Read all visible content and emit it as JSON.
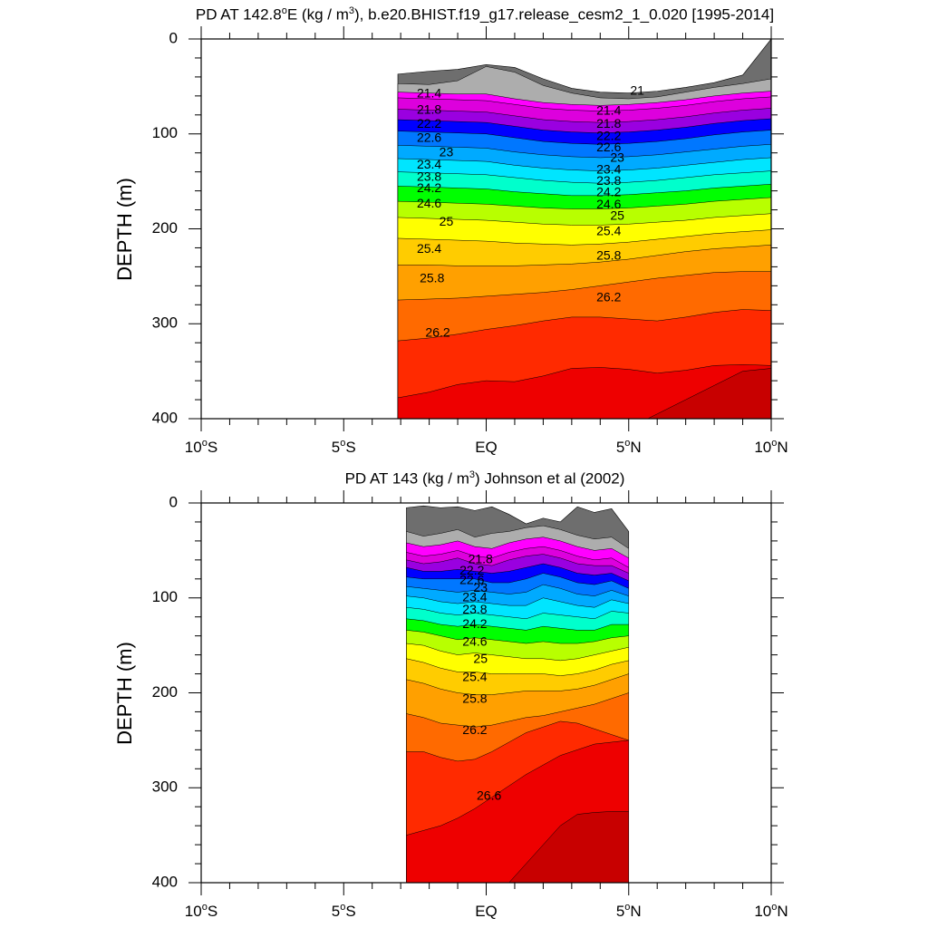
{
  "chart_data": [
    {
      "type": "contour",
      "title_prefix": "PD AT 142.8",
      "title_sup1": "o",
      "title_mid": "E (kg / m",
      "title_sup2": "3",
      "title_suffix": "), b.e20.BHIST.f19_g17.release_cesm2_1_0.020 [1995-2014]",
      "ylabel": "DEPTH (m)",
      "xlim": [
        -10,
        10
      ],
      "ylim": [
        0,
        400
      ],
      "x_ticks": [
        {
          "value": -10,
          "main": "10",
          "deg": "o",
          "hemi": "S"
        },
        {
          "value": -5,
          "main": "5",
          "deg": "o",
          "hemi": "S"
        },
        {
          "value": 0,
          "main": "EQ",
          "deg": "",
          "hemi": ""
        },
        {
          "value": 5,
          "main": "5",
          "deg": "o",
          "hemi": "N"
        },
        {
          "value": 10,
          "main": "10",
          "deg": "o",
          "hemi": "N"
        }
      ],
      "y_ticks": [
        "0",
        "100",
        "200",
        "300",
        "400"
      ],
      "y_tick_values": [
        0,
        100,
        200,
        300,
        400
      ],
      "data_extent_lat": [
        -3.1,
        10
      ],
      "contour_x": [
        -3.1,
        -2,
        -1,
        0,
        1,
        2,
        3,
        4,
        5,
        6,
        7,
        8,
        9,
        10
      ],
      "top_surface_depth": [
        37,
        34,
        32,
        27,
        30,
        42,
        52,
        56,
        57,
        55,
        51,
        46,
        38,
        0
      ],
      "contours": [
        {
          "level": 20.6,
          "depth": [
            47,
            48,
            44,
            29,
            35,
            49,
            57,
            62,
            63,
            61,
            56,
            51,
            47,
            42
          ]
        },
        {
          "level": 21.0,
          "depth": [
            56,
            57,
            58,
            58,
            63,
            67,
            69,
            70,
            69,
            67,
            64,
            60,
            57,
            55
          ]
        },
        {
          "level": 21.4,
          "depth": [
            62,
            63,
            64,
            65,
            69,
            73,
            75,
            76,
            75,
            73,
            70,
            66,
            63,
            61
          ]
        },
        {
          "level": 21.8,
          "depth": [
            74,
            75,
            76,
            77,
            81,
            85,
            87,
            88,
            87,
            85,
            82,
            78,
            75,
            73
          ]
        },
        {
          "level": 22.2,
          "depth": [
            85,
            86,
            87,
            88,
            92,
            96,
            98,
            99,
            98,
            96,
            93,
            89,
            86,
            84
          ]
        },
        {
          "level": 22.6,
          "depth": [
            97,
            98,
            99,
            100,
            104,
            108,
            110,
            111,
            110,
            108,
            105,
            101,
            98,
            96
          ]
        },
        {
          "level": 23.0,
          "depth": [
            112,
            113,
            114,
            115,
            119,
            122,
            124,
            125,
            124,
            122,
            119,
            116,
            113,
            111
          ]
        },
        {
          "level": 23.4,
          "depth": [
            126,
            127,
            128,
            129,
            133,
            136,
            138,
            139,
            138,
            136,
            133,
            130,
            127,
            125
          ]
        },
        {
          "level": 23.8,
          "depth": [
            140,
            141,
            142,
            143,
            146,
            149,
            151,
            152,
            151,
            149,
            146,
            143,
            141,
            139
          ]
        },
        {
          "level": 24.2,
          "depth": [
            155,
            156,
            157,
            158,
            161,
            163,
            165,
            165,
            164,
            162,
            160,
            157,
            155,
            153
          ]
        },
        {
          "level": 24.6,
          "depth": [
            171,
            172,
            173,
            174,
            176,
            178,
            179,
            179,
            178,
            176,
            174,
            171,
            169,
            167
          ]
        },
        {
          "level": 25.0,
          "depth": [
            188,
            189,
            190,
            191,
            193,
            195,
            196,
            196,
            195,
            193,
            191,
            188,
            186,
            184
          ]
        },
        {
          "level": 25.4,
          "depth": [
            210,
            211,
            212,
            213,
            215,
            216,
            217,
            216,
            214,
            211,
            208,
            205,
            203,
            201
          ]
        },
        {
          "level": 25.8,
          "depth": [
            238,
            238,
            239,
            239,
            239,
            238,
            237,
            235,
            232,
            228,
            224,
            221,
            219,
            217
          ]
        },
        {
          "level": 26.2,
          "depth": [
            275,
            274,
            273,
            271,
            269,
            267,
            264,
            260,
            256,
            252,
            249,
            246,
            245,
            245
          ]
        },
        {
          "level": 26.6,
          "depth": [
            318,
            315,
            311,
            306,
            302,
            297,
            293,
            293,
            295,
            297,
            293,
            288,
            285,
            286
          ]
        },
        {
          "level": 27.0,
          "depth": [
            378,
            372,
            364,
            360,
            361,
            355,
            347,
            346,
            348,
            352,
            349,
            344,
            343,
            344
          ]
        },
        {
          "level": 27.4,
          "depth": [
            410,
            410,
            410,
            410,
            410,
            410,
            410,
            410,
            410,
            395,
            380,
            365,
            350,
            347
          ]
        }
      ],
      "labels": [
        {
          "text": "21.4",
          "lat": -2.0,
          "depth": 58
        },
        {
          "text": "21.8",
          "lat": -2.0,
          "depth": 75
        },
        {
          "text": "22.2",
          "lat": -2.0,
          "depth": 90
        },
        {
          "text": "22.6",
          "lat": -2.0,
          "depth": 105
        },
        {
          "text": "23",
          "lat": -1.4,
          "depth": 120
        },
        {
          "text": "23.4",
          "lat": -2.0,
          "depth": 133
        },
        {
          "text": "23.8",
          "lat": -2.0,
          "depth": 146
        },
        {
          "text": "24.2",
          "lat": -2.0,
          "depth": 158
        },
        {
          "text": "24.6",
          "lat": -2.0,
          "depth": 174
        },
        {
          "text": "25",
          "lat": -1.4,
          "depth": 193
        },
        {
          "text": "25.4",
          "lat": -2.0,
          "depth": 222
        },
        {
          "text": "25.8",
          "lat": -1.9,
          "depth": 253
        },
        {
          "text": "26.2",
          "lat": -1.7,
          "depth": 310
        },
        {
          "text": "21",
          "lat": 5.3,
          "depth": 55
        },
        {
          "text": "21.4",
          "lat": 4.3,
          "depth": 76
        },
        {
          "text": "21.8",
          "lat": 4.3,
          "depth": 90
        },
        {
          "text": "22.2",
          "lat": 4.3,
          "depth": 103
        },
        {
          "text": "22.6",
          "lat": 4.3,
          "depth": 115
        },
        {
          "text": "23",
          "lat": 4.6,
          "depth": 126
        },
        {
          "text": "23.4",
          "lat": 4.3,
          "depth": 138
        },
        {
          "text": "23.8",
          "lat": 4.3,
          "depth": 150
        },
        {
          "text": "24.2",
          "lat": 4.3,
          "depth": 162
        },
        {
          "text": "24.6",
          "lat": 4.3,
          "depth": 175
        },
        {
          "text": "25",
          "lat": 4.6,
          "depth": 187
        },
        {
          "text": "25.4",
          "lat": 4.3,
          "depth": 203
        },
        {
          "text": "25.8",
          "lat": 4.3,
          "depth": 229
        },
        {
          "text": "26.2",
          "lat": 4.3,
          "depth": 273
        }
      ]
    },
    {
      "type": "contour",
      "title_prefix": "PD AT 143 (kg / m",
      "title_sup1": "3",
      "title_mid": ") Johnson et al (2002)",
      "title_sup2": "",
      "title_suffix": "",
      "ylabel": "DEPTH (m)",
      "xlim": [
        -10,
        10
      ],
      "ylim": [
        0,
        400
      ],
      "x_ticks": [
        {
          "value": -10,
          "main": "10",
          "deg": "o",
          "hemi": "S"
        },
        {
          "value": -5,
          "main": "5",
          "deg": "o",
          "hemi": "S"
        },
        {
          "value": 0,
          "main": "EQ",
          "deg": "",
          "hemi": ""
        },
        {
          "value": 5,
          "main": "5",
          "deg": "o",
          "hemi": "N"
        },
        {
          "value": 10,
          "main": "10",
          "deg": "o",
          "hemi": "N"
        }
      ],
      "y_ticks": [
        "0",
        "100",
        "200",
        "300",
        "400"
      ],
      "y_tick_values": [
        0,
        100,
        200,
        300,
        400
      ],
      "data_extent_lat": [
        -2.8,
        5
      ],
      "contour_x": [
        -2.8,
        -2.2,
        -1.6,
        -1.0,
        -0.4,
        0.2,
        0.8,
        1.4,
        2.0,
        2.6,
        3.2,
        3.8,
        4.4,
        5.0
      ],
      "top_surface_depth": [
        5,
        3,
        5,
        4,
        8,
        4,
        12,
        22,
        16,
        20,
        4,
        10,
        6,
        30
      ],
      "contours": [
        {
          "level": 20.6,
          "depth": [
            30,
            35,
            32,
            28,
            36,
            32,
            30,
            26,
            24,
            28,
            34,
            38,
            36,
            48
          ]
        },
        {
          "level": 21.0,
          "depth": [
            42,
            46,
            44,
            40,
            46,
            48,
            42,
            38,
            36,
            40,
            46,
            50,
            48,
            58
          ]
        },
        {
          "level": 21.4,
          "depth": [
            52,
            56,
            54,
            50,
            56,
            58,
            52,
            48,
            46,
            50,
            56,
            60,
            58,
            68
          ]
        },
        {
          "level": 21.8,
          "depth": [
            60,
            64,
            62,
            58,
            64,
            66,
            60,
            56,
            54,
            58,
            64,
            66,
            66,
            74
          ]
        },
        {
          "level": 22.2,
          "depth": [
            68,
            72,
            72,
            70,
            72,
            74,
            72,
            68,
            64,
            68,
            74,
            76,
            74,
            82
          ]
        },
        {
          "level": 22.6,
          "depth": [
            78,
            80,
            80,
            80,
            80,
            84,
            84,
            80,
            74,
            78,
            84,
            86,
            82,
            90
          ]
        },
        {
          "level": 23.0,
          "depth": [
            88,
            90,
            92,
            94,
            92,
            94,
            96,
            94,
            86,
            90,
            96,
            98,
            92,
            98
          ]
        },
        {
          "level": 23.4,
          "depth": [
            98,
            100,
            104,
            106,
            104,
            106,
            108,
            108,
            100,
            104,
            108,
            110,
            102,
            106
          ]
        },
        {
          "level": 23.8,
          "depth": [
            110,
            112,
            116,
            118,
            116,
            118,
            120,
            122,
            116,
            118,
            120,
            122,
            114,
            116
          ]
        },
        {
          "level": 24.2,
          "depth": [
            122,
            124,
            128,
            130,
            128,
            130,
            132,
            134,
            130,
            132,
            134,
            134,
            128,
            128
          ]
        },
        {
          "level": 24.6,
          "depth": [
            134,
            136,
            140,
            144,
            142,
            144,
            146,
            148,
            146,
            148,
            148,
            146,
            142,
            140
          ]
        },
        {
          "level": 25.0,
          "depth": [
            148,
            150,
            156,
            160,
            158,
            160,
            162,
            164,
            164,
            166,
            164,
            160,
            156,
            152
          ]
        },
        {
          "level": 25.4,
          "depth": [
            164,
            168,
            174,
            178,
            178,
            180,
            180,
            180,
            180,
            182,
            180,
            176,
            170,
            166
          ]
        },
        {
          "level": 25.8,
          "depth": [
            186,
            190,
            196,
            200,
            202,
            202,
            200,
            198,
            198,
            198,
            196,
            192,
            186,
            180
          ]
        },
        {
          "level": 26.2,
          "depth": [
            222,
            226,
            232,
            234,
            236,
            234,
            230,
            226,
            224,
            220,
            216,
            212,
            206,
            200
          ]
        },
        {
          "level": 26.6,
          "depth": [
            262,
            262,
            268,
            272,
            270,
            262,
            252,
            242,
            236,
            230,
            232,
            238,
            244,
            250
          ]
        },
        {
          "level": 27.0,
          "depth": [
            350,
            345,
            340,
            332,
            322,
            310,
            298,
            286,
            276,
            266,
            260,
            254,
            252,
            250
          ]
        },
        {
          "level": 27.4,
          "depth": [
            410,
            410,
            410,
            410,
            410,
            410,
            400,
            380,
            360,
            340,
            328,
            326,
            325,
            325
          ]
        }
      ],
      "labels": [
        {
          "text": "21.8",
          "lat": -0.2,
          "depth": 60
        },
        {
          "text": "22.2",
          "lat": -0.5,
          "depth": 72
        },
        {
          "text": "22.6",
          "lat": -0.5,
          "depth": 82
        },
        {
          "text": "23",
          "lat": -0.2,
          "depth": 90
        },
        {
          "text": "23.4",
          "lat": -0.4,
          "depth": 100
        },
        {
          "text": "23.8",
          "lat": -0.4,
          "depth": 113
        },
        {
          "text": "24.2",
          "lat": -0.4,
          "depth": 128
        },
        {
          "text": "24.6",
          "lat": -0.4,
          "depth": 147
        },
        {
          "text": "25",
          "lat": -0.2,
          "depth": 165
        },
        {
          "text": "25.4",
          "lat": -0.4,
          "depth": 184
        },
        {
          "text": "25.8",
          "lat": -0.4,
          "depth": 207
        },
        {
          "text": "26.2",
          "lat": -0.4,
          "depth": 240
        },
        {
          "text": "26.6",
          "lat": 0.1,
          "depth": 309
        }
      ]
    }
  ],
  "fill_palette": [
    {
      "below": 20.6,
      "color": "#6e6e6e"
    },
    {
      "below": 21.0,
      "color": "#adadad"
    },
    {
      "below": 21.4,
      "color": "#ff00ff"
    },
    {
      "below": 21.8,
      "color": "#dd00dd"
    },
    {
      "below": 22.2,
      "color": "#9a00e0"
    },
    {
      "below": 22.6,
      "color": "#0000ff"
    },
    {
      "below": 23.0,
      "color": "#0077ff"
    },
    {
      "below": 23.4,
      "color": "#00aaff"
    },
    {
      "below": 23.8,
      "color": "#00e5ff"
    },
    {
      "below": 24.2,
      "color": "#00ffcc"
    },
    {
      "below": 24.6,
      "color": "#00ff00"
    },
    {
      "below": 25.0,
      "color": "#b8ff00"
    },
    {
      "below": 25.4,
      "color": "#ffff00"
    },
    {
      "below": 25.8,
      "color": "#ffcc00"
    },
    {
      "below": 26.2,
      "color": "#ffa000"
    },
    {
      "below": 26.6,
      "color": "#ff6a00"
    },
    {
      "below": 27.0,
      "color": "#ff2a00"
    },
    {
      "below": 27.4,
      "color": "#ee0000"
    },
    {
      "below": 99,
      "color": "#c80000"
    }
  ]
}
